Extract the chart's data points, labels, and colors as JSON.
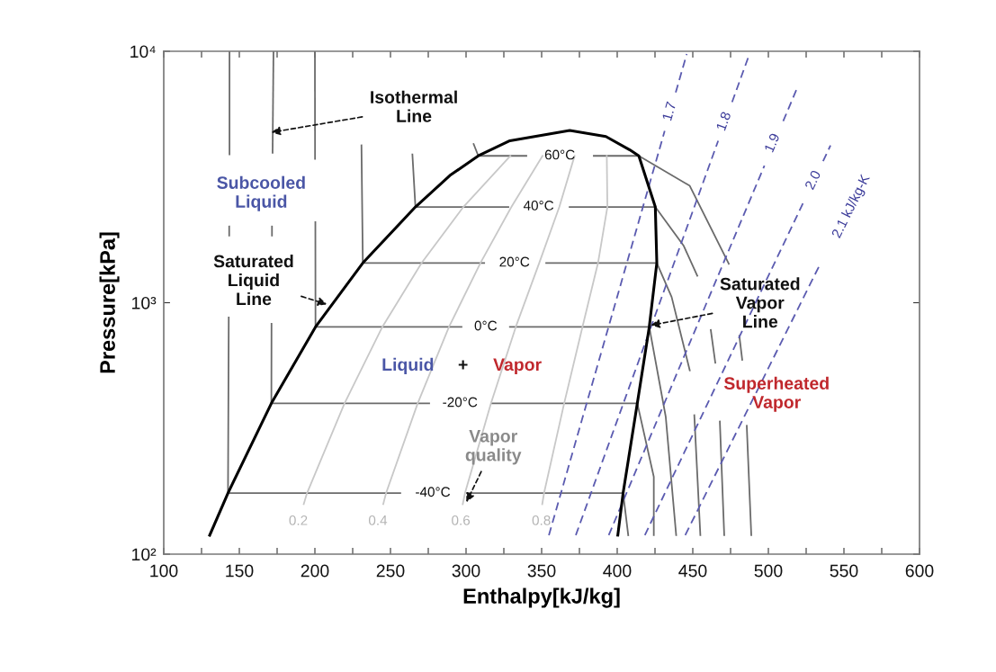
{
  "chart_data": {
    "type": "line",
    "xlabel": "Enthalpy[kJ/kg]",
    "ylabel": "Pressure[kPa]",
    "log": "y",
    "xlim": [
      100,
      600
    ],
    "ylim": [
      100,
      10000
    ],
    "xticks": [
      100,
      {
        "value": 125,
        "label": null
      },
      150,
      {
        "value": 175,
        "label": null
      },
      200,
      {
        "value": 225,
        "label": null
      },
      250,
      {
        "value": 275,
        "label": null
      },
      300,
      {
        "value": 325,
        "label": null
      },
      350,
      {
        "value": 375,
        "label": null
      },
      400,
      {
        "value": 425,
        "label": null
      },
      450,
      {
        "value": 475,
        "label": null
      },
      500,
      {
        "value": 525,
        "label": null
      },
      550,
      {
        "value": 575,
        "label": null
      },
      600
    ],
    "yticks": [
      {
        "value": 100,
        "label": "10²"
      },
      {
        "value": 1000,
        "label": "10³"
      },
      {
        "value": 10000,
        "label": "10⁴"
      }
    ],
    "grid": false,
    "marker": "none",
    "line_style": "solid",
    "series": [
      {
        "color": "#000000",
        "x": [
          130.4,
          142.5,
          171.2,
          200.4,
          231.7,
          266.5,
          289.3,
          308.1,
          329,
          368.6,
          392.5,
          408.3,
          414.3,
          425.2,
          426.2,
          421.2,
          413.3,
          403.9,
          400.4
        ],
        "values": [
          119,
          175,
          398,
          801,
          1439,
          2404,
          3207,
          3838,
          4406,
          4842,
          4580,
          4055,
          3838,
          2404,
          1439,
          801,
          398,
          175,
          119
        ]
      },
      {
        "color": "#6b6b6b",
        "x": [
          143.5,
          143.5
        ],
        "values": [
          10000,
          3890
        ]
      },
      {
        "color": "#6b6b6b",
        "x": [
          143.3,
          143.3
        ],
        "values": [
          2010,
          1849
        ]
      },
      {
        "color": "#6b6b6b",
        "x": [
          143,
          142.5,
          256.5,
          279,
          301,
          403.9,
          407.3
        ],
        "values": [
          873,
          175,
          175,
          null,
          175,
          175,
          119
        ]
      },
      {
        "color": "#6b6b6b",
        "x": [
          172.6,
          172
        ],
        "values": [
          10000,
          3945
        ]
      },
      {
        "color": "#6b6b6b",
        "x": [
          171.6,
          171.6
        ],
        "values": [
          2010,
          1849
        ]
      },
      {
        "color": "#6b6b6b",
        "x": [
          171.3,
          171.2,
          275.6,
          296,
          317,
          413.3,
          424.2,
          424.2
        ],
        "values": [
          824,
          398,
          398,
          null,
          398,
          398,
          203,
          119
        ]
      },
      {
        "color": "#6b6b6b",
        "x": [
          200,
          200.1
        ],
        "values": [
          10000,
          3733
        ]
      },
      {
        "color": "#6b6b6b",
        "x": [
          200.3,
          200.4,
          297,
          313,
          329,
          421.2,
          432.1,
          439
        ],
        "values": [
          2094,
          801,
          801,
          null,
          801,
          801,
          352,
          119
        ]
      },
      {
        "color": "#6b6b6b",
        "x": [
          230.8,
          231.7,
          312,
          332,
          353,
          426.2,
          436,
          448,
          449.5,
          451,
          455
        ],
        "values": [
          4227,
          1439,
          1439,
          null,
          1439,
          1439,
          1054,
          538,
          null,
          357,
          119
        ]
      },
      {
        "color": "#6b6b6b",
        "x": [
          264.5,
          266.5,
          328,
          348,
          368.5,
          425.2,
          444,
          453,
          457,
          461.9,
          464.9,
          466,
          467.9,
          470.8
        ],
        "values": [
          3890,
          2404,
          2404,
          null,
          2404,
          2404,
          1683,
          1279,
          null,
          780,
          577,
          null,
          337,
          119
        ]
      },
      {
        "color": "#6b6b6b",
        "x": [
          305,
          308.1,
          339.9,
          362,
          384.5,
          414.3,
          448,
          467.9,
          473.8,
          477,
          480.8,
          482.7,
          484,
          485.7,
          488.7
        ],
        "values": [
          4276,
          3838,
          3838,
          null,
          3838,
          3838,
          2917,
          1683,
          1429,
          null,
          738,
          593,
          null,
          324,
          119
        ]
      },
      {
        "color": "#c8c8c8",
        "x": [
          192.6,
          194.8,
          219.6,
          244.6,
          270.6,
          298.2,
          329.3
        ],
        "values": [
          158,
          175,
          398,
          801,
          1439,
          2404,
          3838
        ]
      },
      {
        "color": "#c8c8c8",
        "x": [
          245.2,
          247.1,
          268.0,
          288.7,
          309.5,
          330.0,
          350.6
        ],
        "values": [
          158,
          175,
          398,
          801,
          1439,
          2404,
          3838
        ]
      },
      {
        "color": "#c8c8c8",
        "x": [
          297.8,
          299.3,
          316.5,
          332.9,
          348.4,
          361.7,
          371.8
        ],
        "values": [
          158,
          175,
          398,
          801,
          1439,
          2404,
          3838
        ]
      },
      {
        "color": "#c8c8c8",
        "x": [
          350.4,
          351.6,
          364.9,
          377.0,
          387.3,
          393.5,
          393.1
        ],
        "values": [
          158,
          175,
          398,
          801,
          1439,
          2404,
          3838
        ]
      },
      {
        "color": "#5b5bb0",
        "line_style": "dashed",
        "x": [
          354.8,
          431.4,
          435,
          438.7,
          446
        ],
        "values": [
          119,
          4819,
          null,
          6855,
          9750
        ]
      },
      {
        "color": "#5b5bb0",
        "line_style": "dashed",
        "x": [
          372.6,
          466.8,
          471,
          476,
          487.5
        ],
        "values": [
          119,
          4406,
          null,
          6281,
          9750
        ]
      },
      {
        "color": "#5b5bb0",
        "line_style": "dashed",
        "x": [
          394.4,
          497.4,
          503,
          509.8,
          518.5
        ],
        "values": [
          119,
          3508,
          null,
          5272,
          7015
        ]
      },
      {
        "color": "#5b5bb0",
        "line_style": "dashed",
        "x": [
          418.3,
          523.9,
          530,
          536.2,
          541.1
        ],
        "values": [
          119,
          2559,
          null,
          3656,
          4220
        ]
      },
      {
        "color": "#5b5bb0",
        "line_style": "dashed",
        "x": [
          445,
          533.3
        ],
        "values": [
          119,
          1387
        ]
      }
    ],
    "annotations": [
      {
        "text": "Isothermal\nLine",
        "x": 171.2,
        "y": 4760
      },
      "Subcooled\nLiquid",
      {
        "text": "Saturated\nLiquid\nLine",
        "x": 207.9,
        "y": 986
      },
      "Liquid",
      "+",
      "Vapor",
      {
        "text": "Vapor\nquality",
        "x": 300.2,
        "y": 161
      },
      {
        "text": "Saturated\nVapor\nLine",
        "x": 422.2,
        "y": 813
      },
      "Superheated\nVapor",
      "-40°C",
      "-20°C",
      "0°C",
      "20°C",
      "40°C",
      "60°C",
      "0.2",
      "0.4",
      "0.6",
      "0.8",
      "1.7",
      "1.8",
      "1.9",
      "2.0",
      "2.1 kJ/kg-K"
    ]
  }
}
